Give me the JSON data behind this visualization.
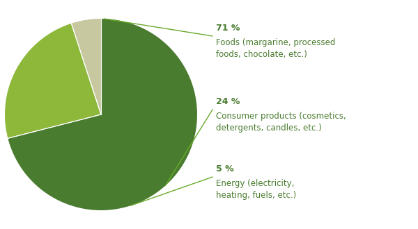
{
  "slices": [
    71,
    24,
    5
  ],
  "colors": [
    "#4a7c2f",
    "#8db83a",
    "#c8c8a0"
  ],
  "pct_labels": [
    "71 %",
    "24 %",
    "5 %"
  ],
  "desc_labels": [
    "Foods (margarine, processed\nfoods, chocolate, etc.)",
    "Consumer products (cosmetics,\ndetergents, candles, etc.)",
    "Energy (electricity,\nheating, fuels, etc.)"
  ],
  "line_color": "#6aaa2a",
  "text_color": "#4a7c2f",
  "background_color": "#ffffff",
  "startangle": 90
}
